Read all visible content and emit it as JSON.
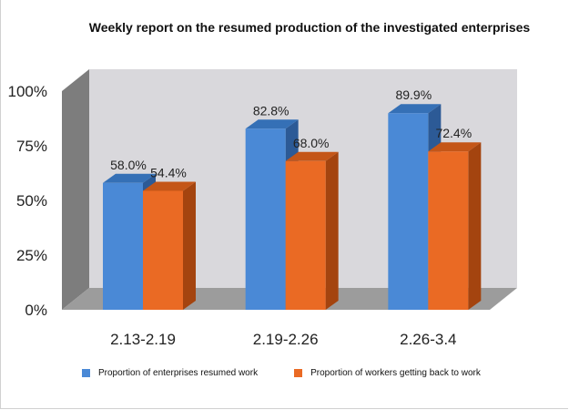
{
  "chart_data": {
    "type": "bar",
    "title": "Weekly report on the resumed production of the investigated enterprises",
    "categories": [
      "2.13-2.19",
      "2.19-2.26",
      "2.26-3.4"
    ],
    "series": [
      {
        "name": "Proportion of enterprises resumed work",
        "values": [
          58.0,
          82.8,
          89.9
        ],
        "labels": [
          "58.0%",
          "82.8%",
          "89.9%"
        ],
        "color": "#4a89d6",
        "side_color": "#2c5a96",
        "top_color": "#3570b6"
      },
      {
        "name": "Proportion of workers getting back to work",
        "values": [
          54.4,
          68.0,
          72.4
        ],
        "labels": [
          "54.4%",
          "68.0%",
          "72.4%"
        ],
        "color": "#ea6a24",
        "side_color": "#a4440f",
        "top_color": "#c45618"
      }
    ],
    "y_ticks": [
      {
        "value": 0,
        "label": "0%"
      },
      {
        "value": 25,
        "label": "25%"
      },
      {
        "value": 50,
        "label": "50%"
      },
      {
        "value": 75,
        "label": "75%"
      },
      {
        "value": 100,
        "label": "100%"
      }
    ],
    "ylim": [
      0,
      100
    ],
    "grid": false,
    "three_d": true,
    "legend_position": "bottom",
    "colors": {
      "back_wall": "#d9d8dc",
      "side_wall": "#7d7d7d",
      "floor": "#9c9c9c"
    }
  }
}
